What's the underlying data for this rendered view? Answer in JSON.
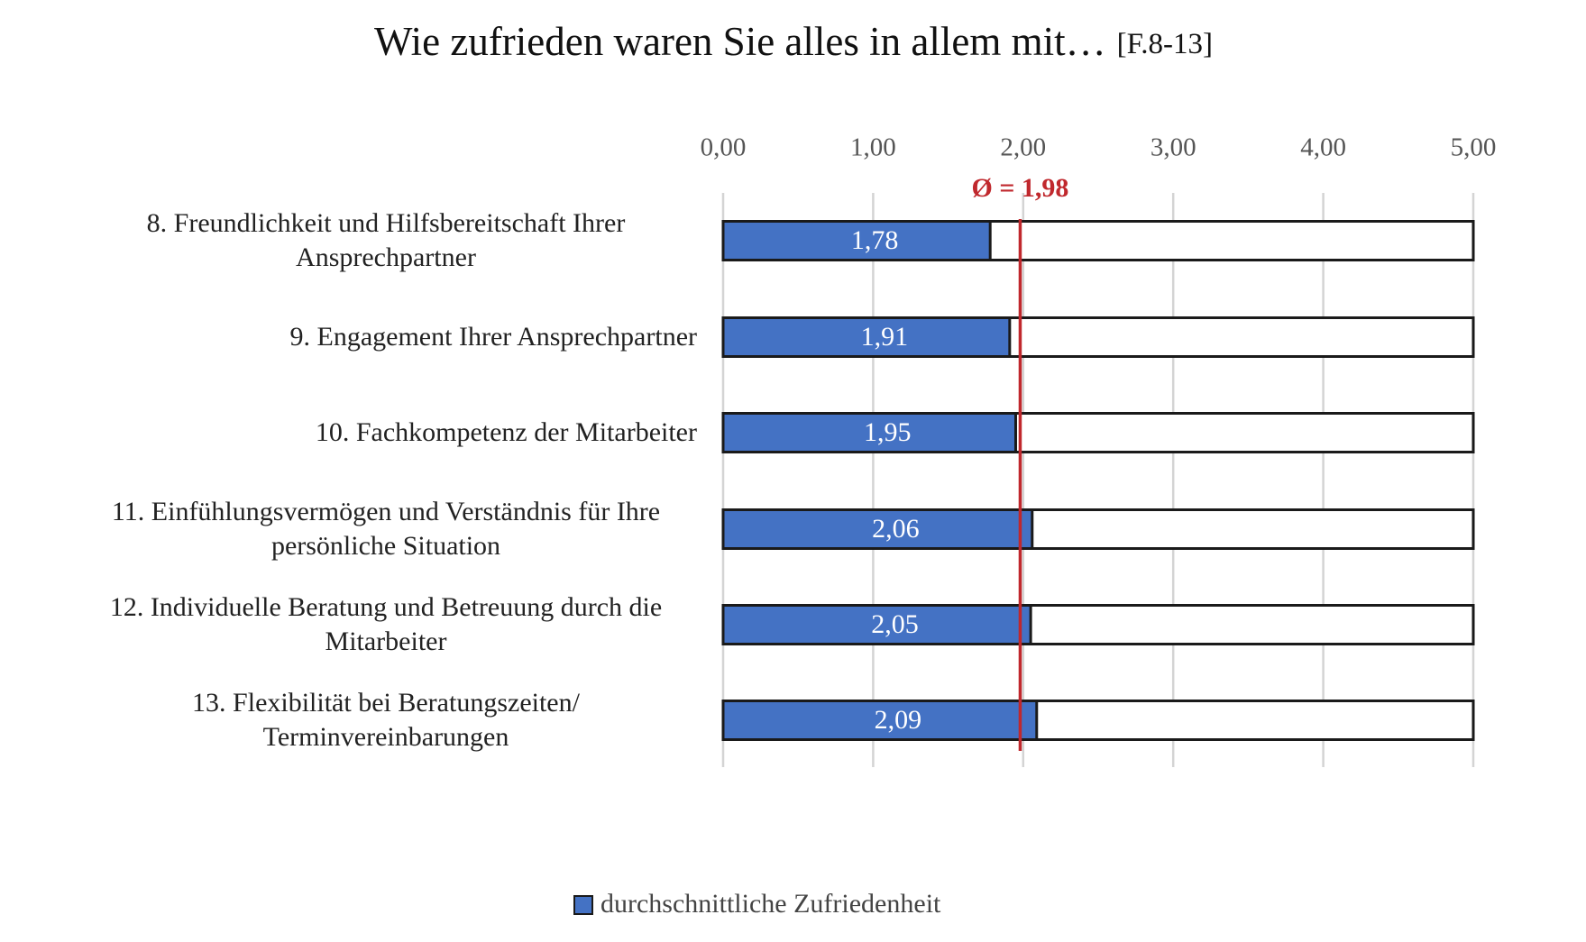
{
  "chart_data": {
    "type": "bar",
    "orientation": "horizontal",
    "title": "Wie zufrieden waren Sie alles in allem mit…",
    "title_note": "[F.8-13]",
    "categories": [
      "8. Freundlichkeit und Hilfsbereitschaft Ihrer Ansprechpartner",
      "9. Engagement Ihrer Ansprechpartner",
      "10. Fachkompetenz der Mitarbeiter",
      "11. Einfühlungsvermögen und Verständnis für Ihre persönliche Situation",
      "12. Individuelle Beratung und Betreuung durch die Mitarbeiter",
      "13. Flexibilität bei Beratungszeiten/ Terminvereinbarungen"
    ],
    "series": [
      {
        "name": "durchschnittliche Zufriedenheit",
        "color": "#4472c4",
        "values": [
          1.78,
          1.91,
          1.95,
          2.06,
          2.05,
          2.09
        ],
        "value_labels": [
          "1,78",
          "1,91",
          "1,95",
          "2,06",
          "2,05",
          "2,09"
        ]
      }
    ],
    "average": {
      "value": 1.98,
      "label": "Ø = 1,98",
      "color": "#c0282d"
    },
    "xlim": [
      0,
      5
    ],
    "xticks": [
      {
        "value": 0,
        "label": "0,00"
      },
      {
        "value": 1,
        "label": "1,00"
      },
      {
        "value": 2,
        "label": "2,00"
      },
      {
        "value": 3,
        "label": "3,00"
      },
      {
        "value": 4,
        "label": "4,00"
      },
      {
        "value": 5,
        "label": "5,00"
      }
    ],
    "grid": true,
    "legend": "bottom"
  }
}
